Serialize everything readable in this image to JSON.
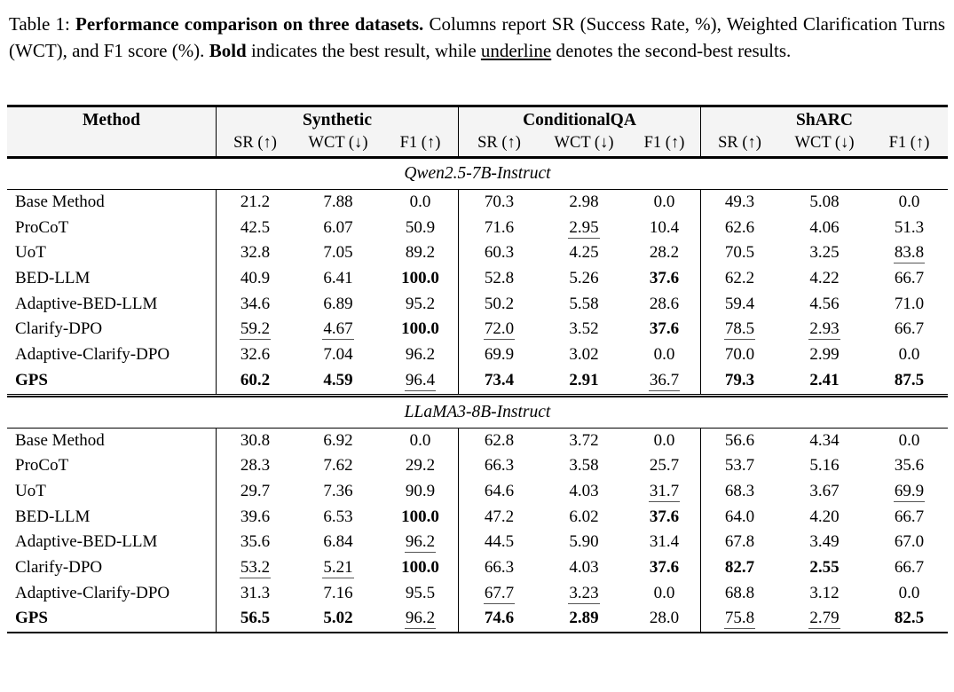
{
  "colors": {
    "header_background": "#f4f4f4",
    "rule_color": "#000000",
    "underline_color": "#555555"
  },
  "caption": {
    "segments": [
      {
        "text": "Table 1: ",
        "style": "normal"
      },
      {
        "text": "Performance comparison on three datasets.",
        "style": "bold"
      },
      {
        "text": "  Columns report SR (Success Rate, %), Weighted Clarification Turns (WCT), and F1 score (%).  ",
        "style": "normal"
      },
      {
        "text": "Bold",
        "style": "bold"
      },
      {
        "text": " indicates the best result, while ",
        "style": "normal"
      },
      {
        "text": "underline",
        "style": "underline"
      },
      {
        "text": " denotes the second-best results.",
        "style": "normal"
      }
    ]
  },
  "table": {
    "method_header": "Method",
    "groups": [
      {
        "name": "Synthetic",
        "columns": [
          "SR (↑)",
          "WCT (↓)",
          "F1 (↑)"
        ]
      },
      {
        "name": "ConditionalQA",
        "columns": [
          "SR (↑)",
          "WCT (↓)",
          "F1 (↑)"
        ]
      },
      {
        "name": "ShARC",
        "columns": [
          "SR (↑)",
          "WCT (↓)",
          "F1 (↑)"
        ]
      }
    ],
    "sections": [
      {
        "title": "Qwen2.5-7B-Instruct",
        "rows": [
          {
            "method": "Base Method",
            "cells": [
              {
                "v": "21.2"
              },
              {
                "v": "7.88"
              },
              {
                "v": "0.0"
              },
              {
                "v": "70.3"
              },
              {
                "v": "2.98"
              },
              {
                "v": "0.0"
              },
              {
                "v": "49.3"
              },
              {
                "v": "5.08"
              },
              {
                "v": "0.0"
              }
            ]
          },
          {
            "method": "ProCoT",
            "cells": [
              {
                "v": "42.5"
              },
              {
                "v": "6.07"
              },
              {
                "v": "50.9"
              },
              {
                "v": "71.6"
              },
              {
                "v": "2.95",
                "f": "u"
              },
              {
                "v": "10.4"
              },
              {
                "v": "62.6"
              },
              {
                "v": "4.06"
              },
              {
                "v": "51.3"
              }
            ]
          },
          {
            "method": "UoT",
            "cells": [
              {
                "v": "32.8"
              },
              {
                "v": "7.05"
              },
              {
                "v": "89.2"
              },
              {
                "v": "60.3"
              },
              {
                "v": "4.25"
              },
              {
                "v": "28.2"
              },
              {
                "v": "70.5"
              },
              {
                "v": "3.25"
              },
              {
                "v": "83.8",
                "f": "u"
              }
            ]
          },
          {
            "method": "BED-LLM",
            "cells": [
              {
                "v": "40.9"
              },
              {
                "v": "6.41"
              },
              {
                "v": "100.0",
                "f": "b"
              },
              {
                "v": "52.8"
              },
              {
                "v": "5.26"
              },
              {
                "v": "37.6",
                "f": "b"
              },
              {
                "v": "62.2"
              },
              {
                "v": "4.22"
              },
              {
                "v": "66.7"
              }
            ]
          },
          {
            "method": "Adaptive-BED-LLM",
            "cells": [
              {
                "v": "34.6"
              },
              {
                "v": "6.89"
              },
              {
                "v": "95.2"
              },
              {
                "v": "50.2"
              },
              {
                "v": "5.58"
              },
              {
                "v": "28.6"
              },
              {
                "v": "59.4"
              },
              {
                "v": "4.56"
              },
              {
                "v": "71.0"
              }
            ]
          },
          {
            "method": "Clarify-DPO",
            "cells": [
              {
                "v": "59.2",
                "f": "u"
              },
              {
                "v": "4.67",
                "f": "u"
              },
              {
                "v": "100.0",
                "f": "b"
              },
              {
                "v": "72.0",
                "f": "u"
              },
              {
                "v": "3.52"
              },
              {
                "v": "37.6",
                "f": "b"
              },
              {
                "v": "78.5",
                "f": "u"
              },
              {
                "v": "2.93",
                "f": "u"
              },
              {
                "v": "66.7"
              }
            ]
          },
          {
            "method": "Adaptive-Clarify-DPO",
            "cells": [
              {
                "v": "32.6"
              },
              {
                "v": "7.04"
              },
              {
                "v": "96.2"
              },
              {
                "v": "69.9"
              },
              {
                "v": "3.02"
              },
              {
                "v": "0.0"
              },
              {
                "v": "70.0"
              },
              {
                "v": "2.99"
              },
              {
                "v": "0.0"
              }
            ]
          },
          {
            "method": "GPS",
            "bold": true,
            "cells": [
              {
                "v": "60.2",
                "f": "b"
              },
              {
                "v": "4.59",
                "f": "b"
              },
              {
                "v": "96.4",
                "f": "u"
              },
              {
                "v": "73.4",
                "f": "b"
              },
              {
                "v": "2.91",
                "f": "b"
              },
              {
                "v": "36.7",
                "f": "u"
              },
              {
                "v": "79.3",
                "f": "b"
              },
              {
                "v": "2.41",
                "f": "b"
              },
              {
                "v": "87.5",
                "f": "b"
              }
            ]
          }
        ]
      },
      {
        "title": "LLaMA3-8B-Instruct",
        "rows": [
          {
            "method": "Base Method",
            "cells": [
              {
                "v": "30.8"
              },
              {
                "v": "6.92"
              },
              {
                "v": "0.0"
              },
              {
                "v": "62.8"
              },
              {
                "v": "3.72"
              },
              {
                "v": "0.0"
              },
              {
                "v": "56.6"
              },
              {
                "v": "4.34"
              },
              {
                "v": "0.0"
              }
            ]
          },
          {
            "method": "ProCoT",
            "cells": [
              {
                "v": "28.3"
              },
              {
                "v": "7.62"
              },
              {
                "v": "29.2"
              },
              {
                "v": "66.3"
              },
              {
                "v": "3.58"
              },
              {
                "v": "25.7"
              },
              {
                "v": "53.7"
              },
              {
                "v": "5.16"
              },
              {
                "v": "35.6"
              }
            ]
          },
          {
            "method": "UoT",
            "cells": [
              {
                "v": "29.7"
              },
              {
                "v": "7.36"
              },
              {
                "v": "90.9"
              },
              {
                "v": "64.6"
              },
              {
                "v": "4.03"
              },
              {
                "v": "31.7",
                "f": "u"
              },
              {
                "v": "68.3"
              },
              {
                "v": "3.67"
              },
              {
                "v": "69.9",
                "f": "u"
              }
            ]
          },
          {
            "method": "BED-LLM",
            "cells": [
              {
                "v": "39.6"
              },
              {
                "v": "6.53"
              },
              {
                "v": "100.0",
                "f": "b"
              },
              {
                "v": "47.2"
              },
              {
                "v": "6.02"
              },
              {
                "v": "37.6",
                "f": "b"
              },
              {
                "v": "64.0"
              },
              {
                "v": "4.20"
              },
              {
                "v": "66.7"
              }
            ]
          },
          {
            "method": "Adaptive-BED-LLM",
            "cells": [
              {
                "v": "35.6"
              },
              {
                "v": "6.84"
              },
              {
                "v": "96.2",
                "f": "u"
              },
              {
                "v": "44.5"
              },
              {
                "v": "5.90"
              },
              {
                "v": "31.4"
              },
              {
                "v": "67.8"
              },
              {
                "v": "3.49"
              },
              {
                "v": "67.0"
              }
            ]
          },
          {
            "method": "Clarify-DPO",
            "cells": [
              {
                "v": "53.2",
                "f": "u"
              },
              {
                "v": "5.21",
                "f": "u"
              },
              {
                "v": "100.0",
                "f": "b"
              },
              {
                "v": "66.3"
              },
              {
                "v": "4.03"
              },
              {
                "v": "37.6",
                "f": "b"
              },
              {
                "v": "82.7",
                "f": "b"
              },
              {
                "v": "2.55",
                "f": "b"
              },
              {
                "v": "66.7"
              }
            ]
          },
          {
            "method": "Adaptive-Clarify-DPO",
            "cells": [
              {
                "v": "31.3"
              },
              {
                "v": "7.16"
              },
              {
                "v": "95.5"
              },
              {
                "v": "67.7",
                "f": "u"
              },
              {
                "v": "3.23",
                "f": "u"
              },
              {
                "v": "0.0"
              },
              {
                "v": "68.8"
              },
              {
                "v": "3.12"
              },
              {
                "v": "0.0"
              }
            ]
          },
          {
            "method": "GPS",
            "bold": true,
            "cells": [
              {
                "v": "56.5",
                "f": "b"
              },
              {
                "v": "5.02",
                "f": "b"
              },
              {
                "v": "96.2",
                "f": "u"
              },
              {
                "v": "74.6",
                "f": "b"
              },
              {
                "v": "2.89",
                "f": "b"
              },
              {
                "v": "28.0"
              },
              {
                "v": "75.8",
                "f": "u"
              },
              {
                "v": "2.79",
                "f": "u"
              },
              {
                "v": "82.5",
                "f": "b"
              }
            ]
          }
        ]
      }
    ]
  }
}
